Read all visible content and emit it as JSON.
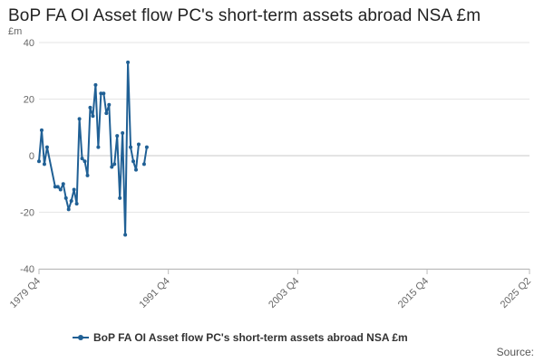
{
  "chart_data": {
    "type": "line",
    "title": "BoP FA OI Asset flow PC's short-term assets abroad NSA £m",
    "ylabel": "£m",
    "xlabel": "",
    "ylim": [
      -40,
      40
    ],
    "yticks": [
      40,
      20,
      0,
      -20,
      -40
    ],
    "xlim": [
      "1979 Q4",
      "2025 Q2"
    ],
    "xticks": [
      "1979 Q4",
      "1991 Q4",
      "2003 Q4",
      "2015 Q4",
      "2025 Q2"
    ],
    "grid": "horizontal",
    "legend_position": "bottom",
    "colors": {
      "series": "#206095"
    },
    "series": [
      {
        "name": "BoP FA OI Asset flow PC's short-term assets abroad NSA £m",
        "x": [
          "1979 Q4",
          "1980 Q1",
          "1980 Q2",
          "1980 Q3",
          "1981 Q2",
          "1981 Q3",
          "1981 Q4",
          "1982 Q1",
          "1982 Q2",
          "1982 Q3",
          "1982 Q4",
          "1983 Q1",
          "1983 Q2",
          "1983 Q3",
          "1983 Q4",
          "1984 Q1",
          "1984 Q2",
          "1984 Q3",
          "1984 Q4",
          "1985 Q1",
          "1985 Q2",
          "1985 Q3",
          "1985 Q4",
          "1986 Q1",
          "1986 Q2",
          "1986 Q3",
          "1986 Q4",
          "1987 Q1",
          "1987 Q2",
          "1987 Q3",
          "1987 Q4",
          "1988 Q1",
          "1988 Q2",
          "1988 Q3",
          "1988 Q4",
          "1989 Q1",
          "1989 Q2",
          "1989 Q3",
          "1989 Q4",
          "1990 Q1",
          "1990 Q2",
          "1990 Q3",
          "1990 Q4",
          "1991 Q1",
          "1991 Q2",
          "1991 Q3"
        ],
        "values": [
          -2,
          9,
          -3,
          3,
          -11,
          -11,
          -12,
          -10,
          -15,
          -19,
          -16,
          -12,
          -17,
          13,
          -1,
          -2,
          -7,
          17,
          14,
          25,
          3,
          22,
          22,
          15,
          18,
          -4,
          -3,
          7,
          -15,
          8,
          -28,
          33,
          3,
          -2,
          -5,
          4,
          null,
          -3,
          3,
          null,
          null,
          null,
          null,
          null,
          null,
          null
        ]
      }
    ]
  },
  "legend": {
    "label": "BoP FA OI Asset flow PC's short-term assets abroad NSA £m"
  },
  "source_label": "Source:"
}
